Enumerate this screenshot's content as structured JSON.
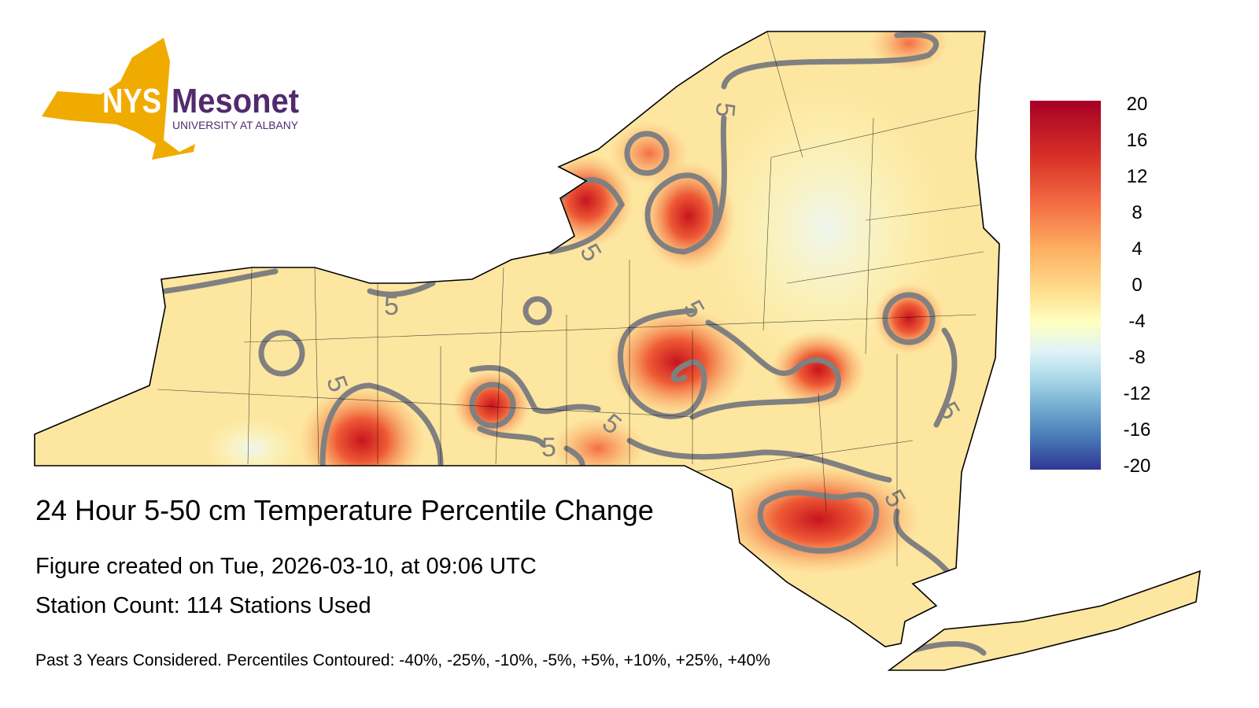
{
  "logo": {
    "name": "NYS",
    "product": "Mesonet",
    "org": "UNIVERSITY AT ALBANY",
    "state_color": "#f0ab00",
    "text_color": "#522a6e"
  },
  "title": "24 Hour 5-50 cm Temperature Percentile Change",
  "created": "Figure created on Tue, 2026-03-10, at 09:06 UTC",
  "station_count": "Station Count: 114 Stations Used",
  "note": "Past 3 Years Considered. Percentiles Contoured: -40%, -25%, -10%, -5%, +5%, +10%, +25%, +40%",
  "colorbar": {
    "ticks": [
      "20",
      "16",
      "12",
      "8",
      "4",
      "0",
      "-4",
      "-8",
      "-12",
      "-16",
      "-20"
    ],
    "min": -20,
    "max": 20
  },
  "contour_labels": [
    "5",
    "5",
    "5",
    "5",
    "5",
    "5",
    "5",
    "5",
    "5"
  ]
}
